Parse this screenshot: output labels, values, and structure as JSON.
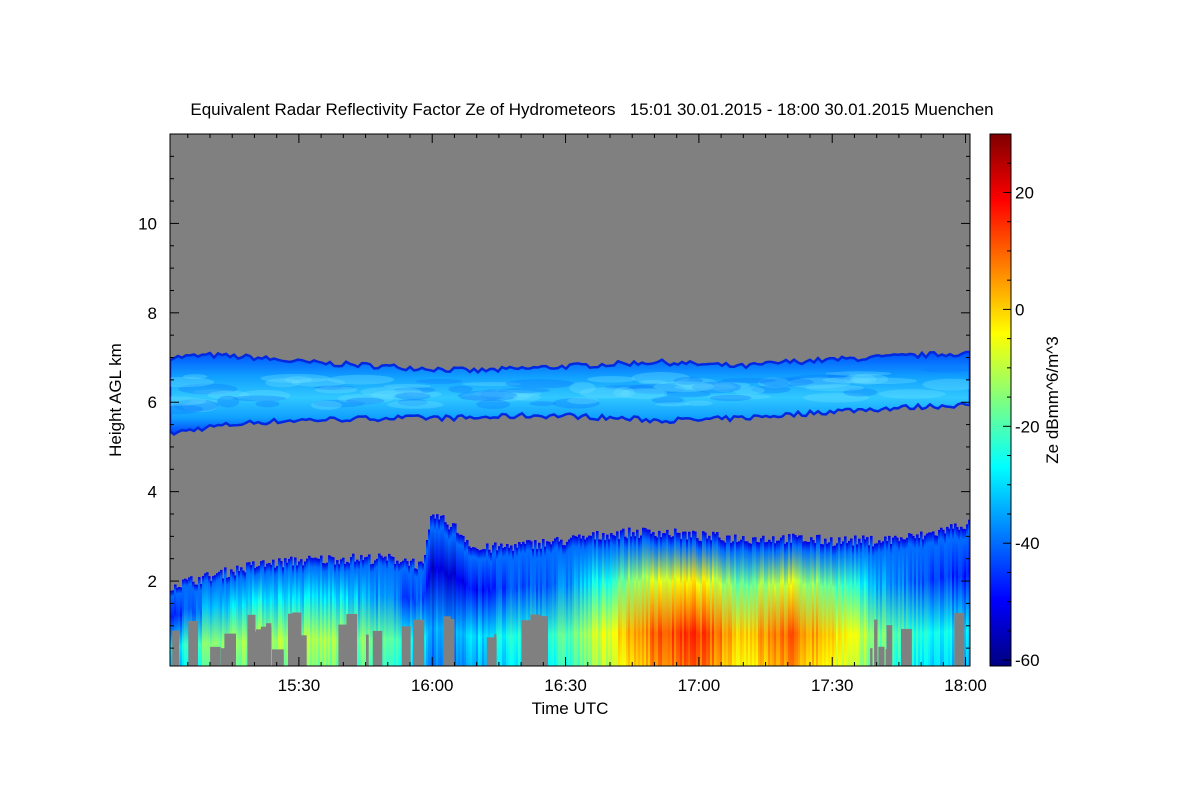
{
  "chart_data": {
    "type": "heatmap",
    "title": "Equivalent Radar Reflectivity Factor Ze of Hydrometeors   15:01 30.01.2015 - 18:00 30.01.2015 Muenchen",
    "xlabel": "Time UTC",
    "ylabel": "Height AGL km",
    "xlim_minutes_utc": [
      901,
      1081
    ],
    "ylim_km": [
      0.1,
      12.0
    ],
    "x_ticks": [
      {
        "label": "15:30",
        "value": 930
      },
      {
        "label": "16:00",
        "value": 960
      },
      {
        "label": "16:30",
        "value": 990
      },
      {
        "label": "17:00",
        "value": 1020
      },
      {
        "label": "17:30",
        "value": 1050
      },
      {
        "label": "18:00",
        "value": 1080
      }
    ],
    "y_ticks": [
      {
        "label": "2",
        "value": 2
      },
      {
        "label": "4",
        "value": 4
      },
      {
        "label": "6",
        "value": 6
      },
      {
        "label": "8",
        "value": 8
      },
      {
        "label": "10",
        "value": 10
      }
    ],
    "colorbar": {
      "label": "Ze dBmm^6/m^3",
      "range": [
        -61,
        30
      ],
      "colormap": "jet",
      "ticks": [
        {
          "label": "20",
          "value": 20
        },
        {
          "label": "0",
          "value": 0
        },
        {
          "label": "-20",
          "value": -20
        },
        {
          "label": "-40",
          "value": -40
        },
        {
          "label": "-60",
          "value": -60
        }
      ]
    },
    "background_color": "#808080",
    "layers": [
      {
        "name": "upper-cloud-layer",
        "x": [
          901,
          910,
          920,
          930,
          940,
          950,
          960,
          970,
          980,
          990,
          1000,
          1010,
          1020,
          1030,
          1040,
          1050,
          1060,
          1070,
          1081
        ],
        "top_km": [
          7.0,
          7.05,
          7.0,
          6.9,
          6.85,
          6.8,
          6.75,
          6.7,
          6.75,
          6.8,
          6.85,
          6.9,
          6.85,
          6.8,
          6.9,
          6.95,
          7.0,
          7.05,
          7.1
        ],
        "base_km": [
          5.3,
          5.45,
          5.55,
          5.6,
          5.62,
          5.65,
          5.65,
          5.65,
          5.7,
          5.7,
          5.65,
          5.6,
          5.6,
          5.65,
          5.72,
          5.8,
          5.85,
          5.9,
          5.95
        ],
        "ze_peak_dbz": -32
      },
      {
        "name": "lower-precipitation-layer",
        "x": [
          901,
          910,
          920,
          930,
          940,
          950,
          955,
          958,
          960,
          965,
          970,
          980,
          990,
          1000,
          1010,
          1020,
          1030,
          1040,
          1050,
          1060,
          1070,
          1081
        ],
        "top_km": [
          1.9,
          2.1,
          2.35,
          2.45,
          2.5,
          2.5,
          2.45,
          2.3,
          3.5,
          3.2,
          2.7,
          2.8,
          2.9,
          3.05,
          3.1,
          3.0,
          2.95,
          2.95,
          2.9,
          2.9,
          3.0,
          3.3
        ],
        "ze_max_dbz": [
          -30,
          -15,
          -10,
          -12,
          -12,
          -20,
          -25,
          -25,
          -35,
          -35,
          -30,
          -25,
          -20,
          -5,
          10,
          14,
          0,
          10,
          0,
          -15,
          -25,
          -30
        ]
      }
    ]
  }
}
